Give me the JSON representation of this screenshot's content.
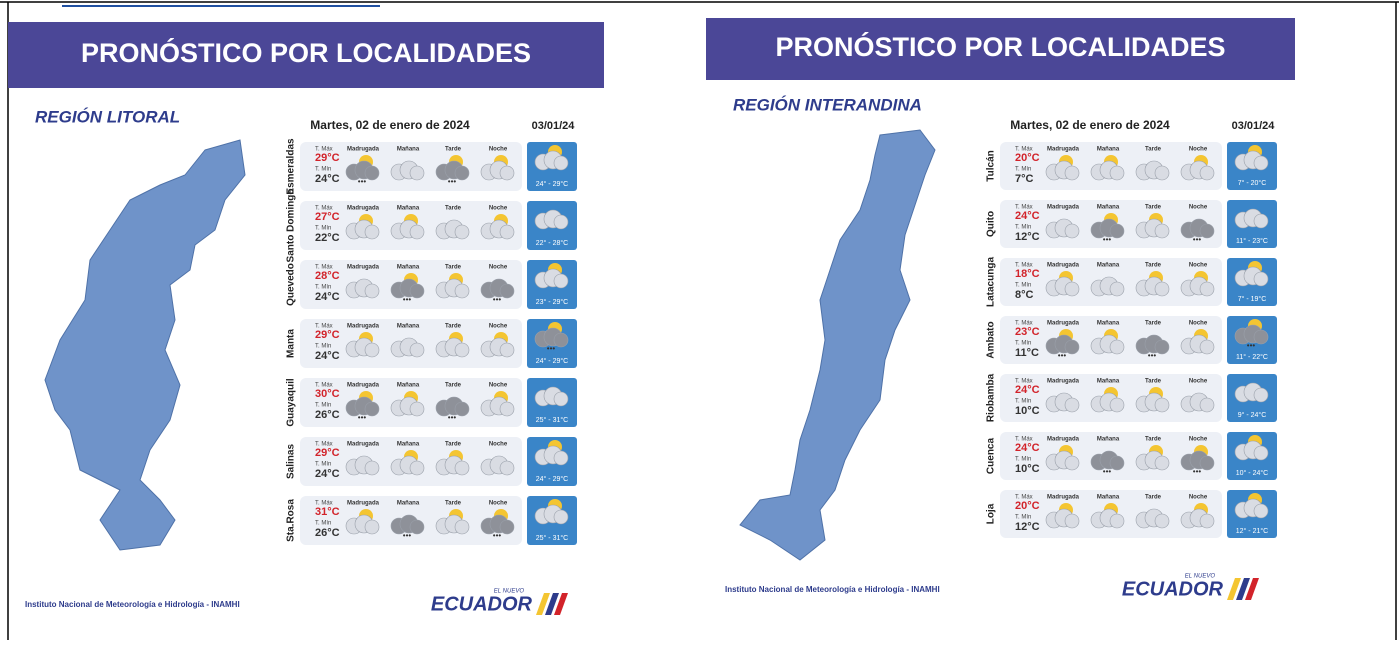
{
  "panels": [
    {
      "title": "PRONÓSTICO POR LOCALIDADES",
      "region": "REGIÓN LITORAL",
      "date": "Martes, 02 de enero de 2024",
      "next_date": "03/01/24",
      "periods": [
        "Madrugada",
        "Mañana",
        "Tarde",
        "Noche"
      ],
      "max_label": "T. Máx",
      "min_label": "T. Mín",
      "rows": [
        {
          "city": "Esmeraldas",
          "max": "29°C",
          "min": "24°C",
          "next": "24° - 29°C"
        },
        {
          "city": "Santo Domingo",
          "max": "27°C",
          "min": "22°C",
          "next": "22° - 28°C"
        },
        {
          "city": "Quevedo",
          "max": "28°C",
          "min": "24°C",
          "next": "23° - 29°C"
        },
        {
          "city": "Manta",
          "max": "29°C",
          "min": "24°C",
          "next": "24° - 29°C"
        },
        {
          "city": "Guayaquil",
          "max": "30°C",
          "min": "26°C",
          "next": "25° - 31°C"
        },
        {
          "city": "Salinas",
          "max": "29°C",
          "min": "24°C",
          "next": "24° - 29°C"
        },
        {
          "city": "Sta.Rosa",
          "max": "31°C",
          "min": "26°C",
          "next": "25° - 31°C"
        }
      ],
      "footer": "Instituto Nacional de Meteorología e Hidrología - INAMHI",
      "logo_small": "EL NUEVO",
      "logo": "ECUADOR"
    },
    {
      "title": "PRONÓSTICO POR LOCALIDADES",
      "region": "REGIÓN INTERANDINA",
      "date": "Martes, 02 de enero de 2024",
      "next_date": "03/01/24",
      "periods": [
        "Madrugada",
        "Mañana",
        "Tarde",
        "Noche"
      ],
      "max_label": "T. Máx",
      "min_label": "T. Mín",
      "rows": [
        {
          "city": "Tulcán",
          "max": "20°C",
          "min": "7°C",
          "next": "7° - 20°C"
        },
        {
          "city": "Quito",
          "max": "24°C",
          "min": "12°C",
          "next": "11° - 23°C"
        },
        {
          "city": "Latacunga",
          "max": "18°C",
          "min": "8°C",
          "next": "7° - 19°C"
        },
        {
          "city": "Ambato",
          "max": "23°C",
          "min": "11°C",
          "next": "11° - 22°C"
        },
        {
          "city": "Riobamba",
          "max": "24°C",
          "min": "10°C",
          "next": "9° - 24°C"
        },
        {
          "city": "Cuenca",
          "max": "24°C",
          "min": "10°C",
          "next": "10° - 24°C"
        },
        {
          "city": "Loja",
          "max": "20°C",
          "min": "12°C",
          "next": "12° - 21°C"
        }
      ],
      "footer": "Instituto Nacional de Meteorología e Hidrología - INAMHI",
      "logo_small": "EL NUEVO",
      "logo": "ECUADOR"
    }
  ]
}
